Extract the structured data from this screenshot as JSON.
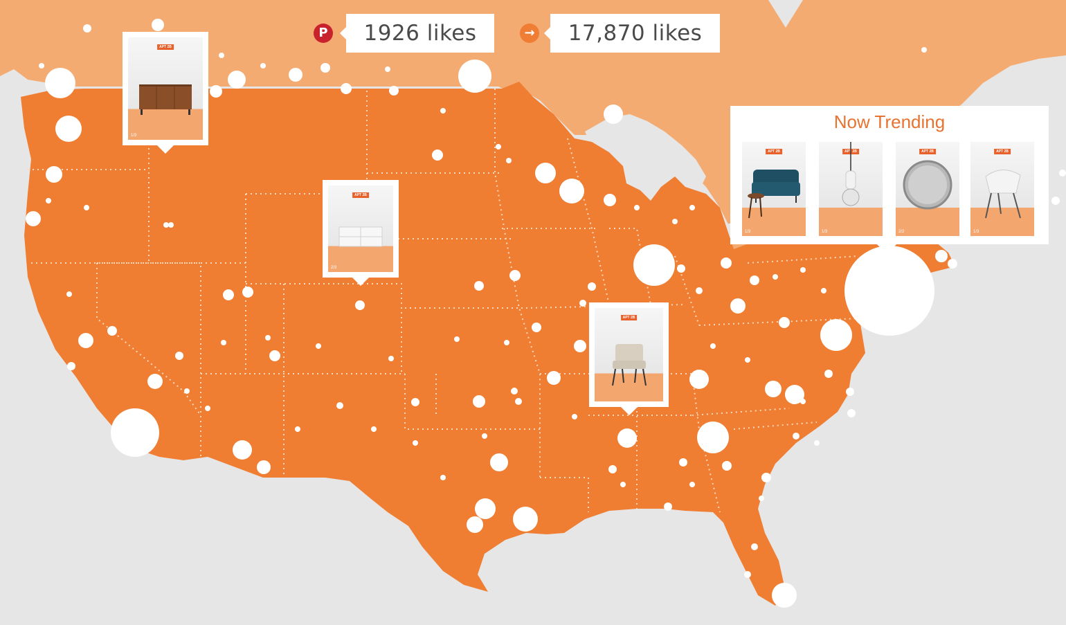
{
  "stats": {
    "pinterest": {
      "icon": "pinterest-icon",
      "color": "#c8232c",
      "label": "1926 likes"
    },
    "share": {
      "icon": "arrow-right-circle-icon",
      "color": "#ef7d34",
      "label": "17,870 likes"
    }
  },
  "colors": {
    "background": "#e6e6e6",
    "canada": "#f4ab72",
    "usa": "#ef7d32",
    "dots": "#ffffff",
    "accent": "#e8722f"
  },
  "map_pins": [
    {
      "product": "dresser-image",
      "brand": "APT 2B",
      "counter": "1/3"
    },
    {
      "product": "white-console-image",
      "brand": "APT 2B",
      "counter": "2/3"
    },
    {
      "product": "lounge-chair-image",
      "brand": "APT 2B",
      "counter": ""
    }
  ],
  "trending": {
    "title": "Now Trending",
    "items": [
      {
        "product": "blue-loveseat-image",
        "brand": "APT 2B",
        "counter": "1/3"
      },
      {
        "product": "pendant-lamp-image",
        "brand": "APT 2B",
        "counter": "1/3"
      },
      {
        "product": "round-mirror-image",
        "brand": "APT 2B",
        "counter": "2/2"
      },
      {
        "product": "white-chair-image",
        "brand": "APT 2B",
        "counter": "1/3"
      }
    ]
  }
}
